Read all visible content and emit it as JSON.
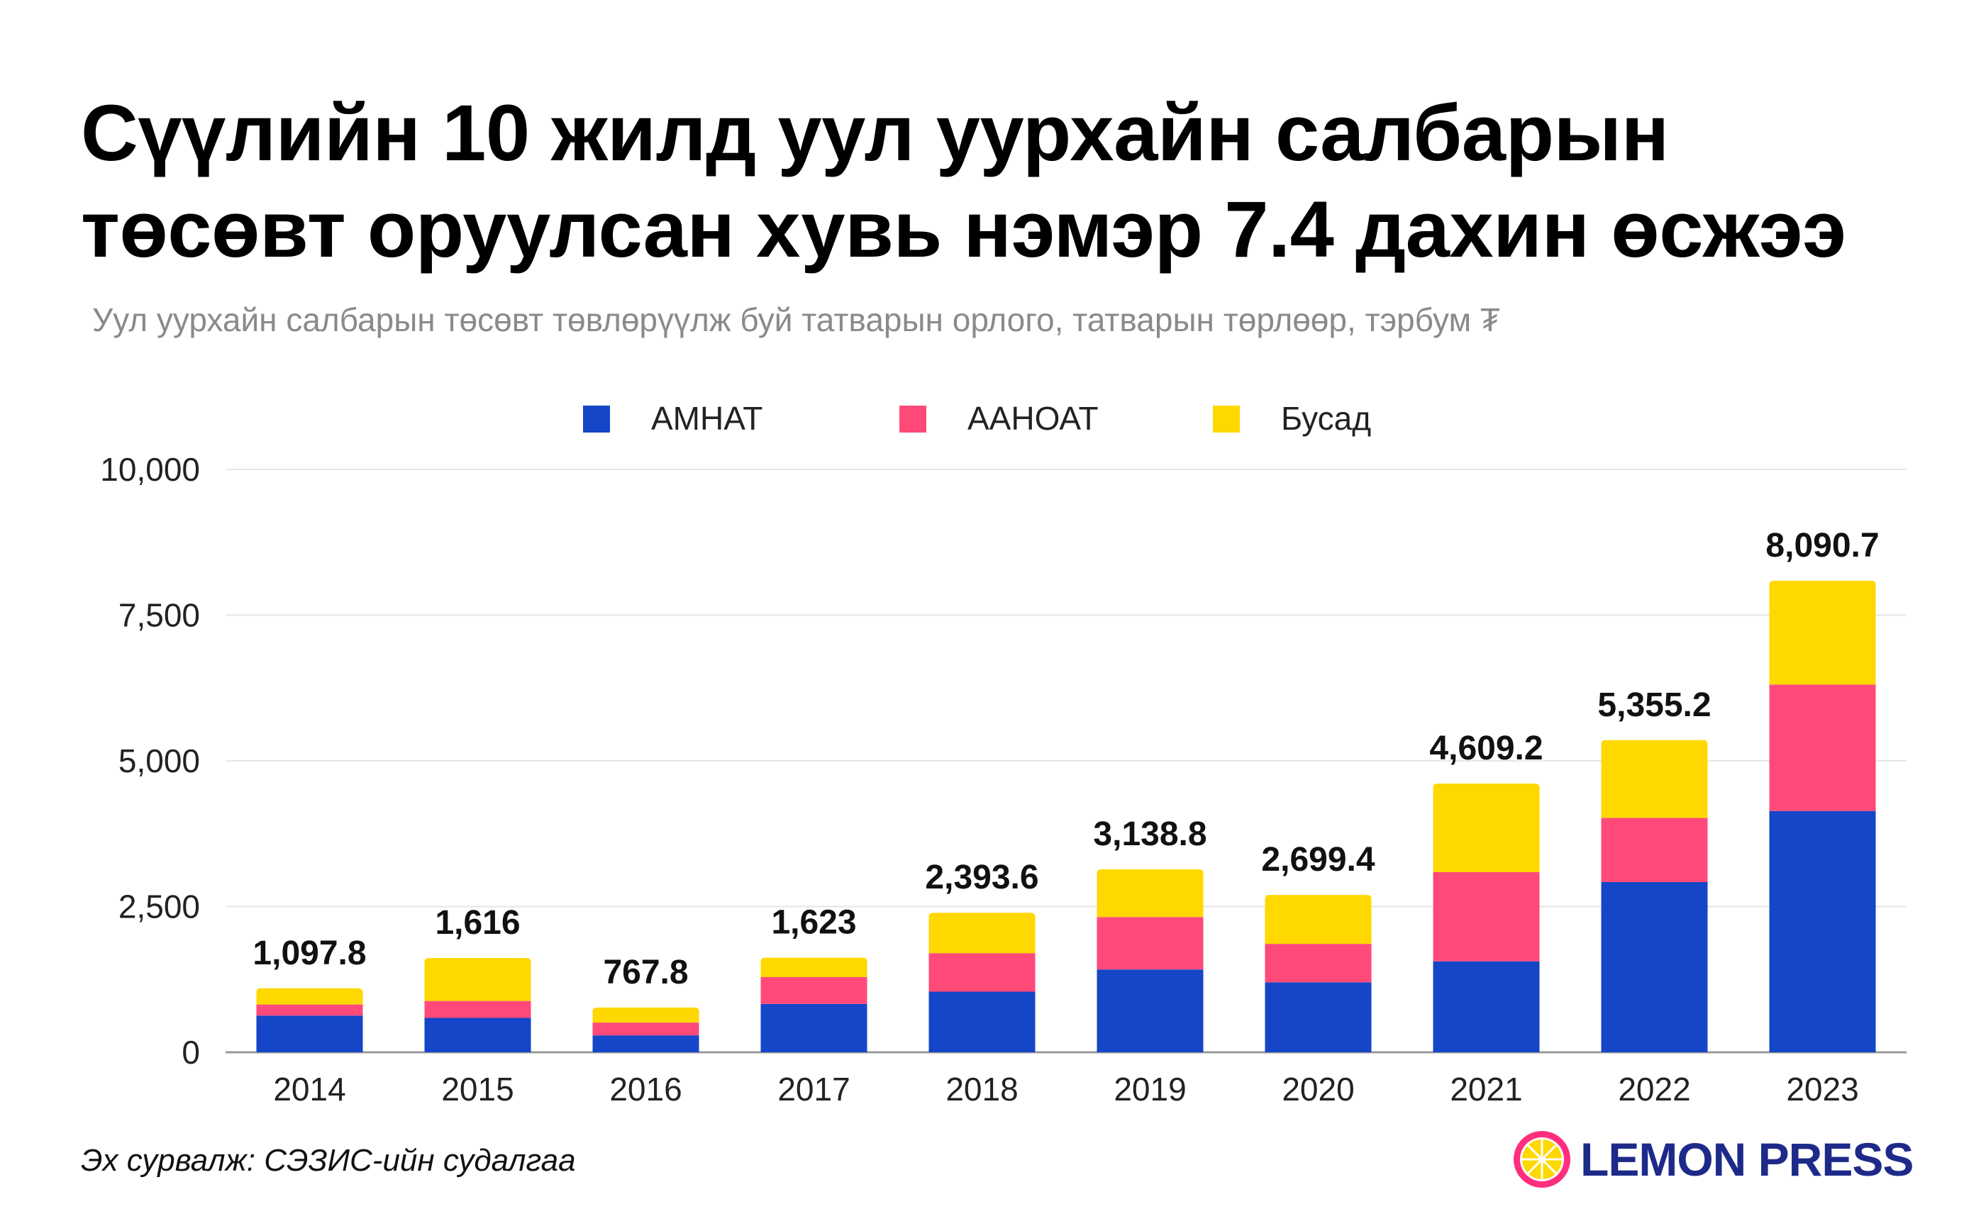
{
  "title": {
    "line1": "Сүүлийн 10 жилд уул уурхайн салбарын",
    "line2": "төсөвт оруулсан хувь нэмэр 7.4 дахин өсжээ"
  },
  "subtitle": "Уул уурхайн салбарын төсөвт төвлөрүүлж буй татварын орлого, татварын төрлөөр, тэрбум ₮",
  "source": "Эх сурвалж: СЭЗИС-ийн судалгаа",
  "logo": {
    "text": "LEMON PRESS",
    "icon": "lemon-slice-icon"
  },
  "colors": {
    "amnat": "#1446c7",
    "aanoat": "#ff4a79",
    "busad": "#ffd800",
    "grid": "#e6e6e6",
    "logo_circle": "#ff2f7d"
  },
  "chart_data": {
    "type": "bar",
    "stacked": true,
    "categories": [
      "2014",
      "2015",
      "2016",
      "2017",
      "2018",
      "2019",
      "2020",
      "2021",
      "2022",
      "2023"
    ],
    "series": [
      {
        "name": "АМНАТ",
        "values": [
          630,
          590,
          290,
          830,
          1040,
          1420,
          1200,
          1560,
          2920,
          4140
        ]
      },
      {
        "name": "ААНОАТ",
        "values": [
          190,
          290,
          220,
          460,
          660,
          900,
          660,
          1530,
          1100,
          2170
        ]
      },
      {
        "name": "Бусад",
        "values": [
          277.8,
          736,
          257.8,
          333,
          693.6,
          818.8,
          839.4,
          1519.2,
          1335.2,
          1780.7
        ]
      }
    ],
    "totals": [
      "1,097.8",
      "1,616",
      "767.8",
      "1,623",
      "2,393.6",
      "3,138.8",
      "2,699.4",
      "4,609.2",
      "5,355.2",
      "8,090.7"
    ],
    "total_values": [
      1097.8,
      1616,
      767.8,
      1623,
      2393.6,
      3138.8,
      2699.4,
      4609.2,
      5355.2,
      8090.7
    ],
    "y_ticks": [
      0,
      2500,
      5000,
      7500,
      10000
    ],
    "y_tick_labels": [
      "0",
      "2,500",
      "5,000",
      "7,500",
      "10,000"
    ],
    "ylim": [
      0,
      10000
    ],
    "grid": true,
    "legend_position": "top-center",
    "title": "Сүүлийн 10 жилд уул уурхайн салбарын төсөвт оруулсан хувь нэмэр 7.4 дахин өсжээ",
    "xlabel": "",
    "ylabel": ""
  }
}
